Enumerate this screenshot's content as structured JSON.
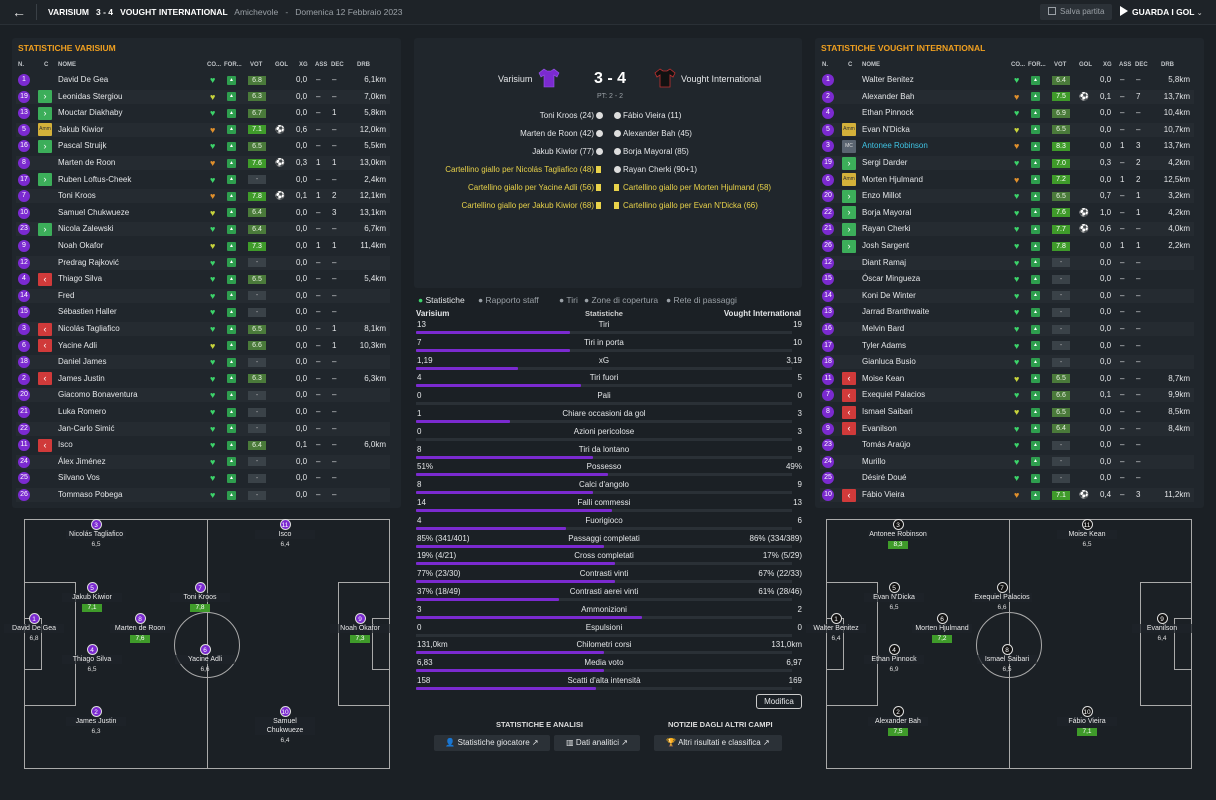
{
  "header": {
    "home": "VARISIUM",
    "score": "3 - 4",
    "away": "VOUGHT INTERNATIONAL",
    "comp": "Amichevole",
    "sep": "-",
    "date": "Domenica 12 Febbraio 2023",
    "save": "Salva partita",
    "watch": "GUARDA I GOL"
  },
  "home": {
    "title": "STATISTICHE VARISIUM",
    "cols": {
      "n": "N.",
      "c": "C",
      "name": "NOME",
      "co": "CO...",
      "for": "FOR...",
      "vot": "VOT",
      "gol": "GOL",
      "xg": "XG",
      "ass": "ASS",
      "dec": "DEC",
      "drb": "DRB"
    },
    "players": [
      {
        "n": "1",
        "c": "",
        "name": "David De Gea",
        "cond": "g",
        "vot": "6.8",
        "vc": "d",
        "gol": "",
        "xg": "0,0",
        "ass": "–",
        "dec": "–",
        "drb": "6,1km"
      },
      {
        "n": "19",
        "c": "in",
        "name": "Leonidas Stergiou",
        "cond": "y",
        "vot": "6.3",
        "vc": "d",
        "gol": "",
        "xg": "0,0",
        "ass": "–",
        "dec": "–",
        "drb": "7,0km"
      },
      {
        "n": "13",
        "c": "in",
        "name": "Mouctar Diakhaby",
        "cond": "g",
        "vot": "6.7",
        "vc": "d",
        "gol": "",
        "xg": "0,0",
        "ass": "–",
        "dec": "1",
        "drb": "5,8km"
      },
      {
        "n": "5",
        "c": "amm",
        "name": "Jakub Kiwior",
        "cond": "o",
        "vot": "7.1",
        "vc": "g",
        "gol": "⚽",
        "xg": "0,6",
        "ass": "–",
        "dec": "–",
        "drb": "12,0km"
      },
      {
        "n": "16",
        "c": "in",
        "name": "Pascal Struijk",
        "cond": "g",
        "vot": "6.5",
        "vc": "d",
        "gol": "",
        "xg": "0,0",
        "ass": "–",
        "dec": "–",
        "drb": "5,5km"
      },
      {
        "n": "8",
        "c": "",
        "name": "Marten de Roon",
        "cond": "o",
        "vot": "7.6",
        "vc": "g",
        "gol": "⚽",
        "xg": "0,3",
        "ass": "1",
        "dec": "1",
        "drb": "13,0km"
      },
      {
        "n": "17",
        "c": "in",
        "name": "Ruben Loftus-Cheek",
        "cond": "g",
        "vot": "-",
        "vc": "d",
        "gol": "",
        "xg": "0,0",
        "ass": "–",
        "dec": "–",
        "drb": "2,4km"
      },
      {
        "n": "7",
        "c": "",
        "name": "Toni Kroos",
        "cond": "o",
        "vot": "7.8",
        "vc": "g",
        "gol": "⚽",
        "xg": "0,1",
        "ass": "1",
        "dec": "2",
        "drb": "12,1km"
      },
      {
        "n": "10",
        "c": "",
        "name": "Samuel Chukwueze",
        "cond": "y",
        "vot": "6.4",
        "vc": "d",
        "gol": "",
        "xg": "0,0",
        "ass": "–",
        "dec": "3",
        "drb": "13,1km"
      },
      {
        "n": "23",
        "c": "in",
        "name": "Nicola Zalewski",
        "cond": "g",
        "vot": "6.4",
        "vc": "d",
        "gol": "",
        "xg": "0,0",
        "ass": "–",
        "dec": "–",
        "drb": "6,7km"
      },
      {
        "n": "9",
        "c": "",
        "name": "Noah Okafor",
        "cond": "y",
        "vot": "7.3",
        "vc": "g",
        "gol": "",
        "xg": "0,0",
        "ass": "1",
        "dec": "1",
        "drb": "11,4km"
      },
      {
        "n": "12",
        "c": "",
        "name": "Predrag Rajković",
        "cond": "g",
        "vot": "-",
        "vc": "d",
        "gol": "",
        "xg": "0,0",
        "ass": "–",
        "dec": "–",
        "drb": ""
      },
      {
        "n": "4",
        "c": "out",
        "name": "Thiago Silva",
        "cond": "g",
        "vot": "6.5",
        "vc": "d",
        "gol": "",
        "xg": "0,0",
        "ass": "–",
        "dec": "–",
        "drb": "5,4km"
      },
      {
        "n": "14",
        "c": "",
        "name": "Fred",
        "cond": "g",
        "vot": "-",
        "vc": "d",
        "gol": "",
        "xg": "0,0",
        "ass": "–",
        "dec": "–",
        "drb": ""
      },
      {
        "n": "15",
        "c": "",
        "name": "Sébastien Haller",
        "cond": "g",
        "vot": "-",
        "vc": "d",
        "gol": "",
        "xg": "0,0",
        "ass": "–",
        "dec": "–",
        "drb": ""
      },
      {
        "n": "3",
        "c": "out",
        "name": "Nicolás Tagliafico",
        "cond": "g",
        "vot": "6.5",
        "vc": "d",
        "gol": "",
        "xg": "0,0",
        "ass": "–",
        "dec": "1",
        "drb": "8,1km"
      },
      {
        "n": "6",
        "c": "out",
        "name": "Yacine Adli",
        "cond": "y",
        "vot": "6.6",
        "vc": "d",
        "gol": "",
        "xg": "0,0",
        "ass": "–",
        "dec": "1",
        "drb": "10,3km"
      },
      {
        "n": "18",
        "c": "",
        "name": "Daniel James",
        "cond": "g",
        "vot": "-",
        "vc": "d",
        "gol": "",
        "xg": "0,0",
        "ass": "–",
        "dec": "–",
        "drb": ""
      },
      {
        "n": "2",
        "c": "out",
        "name": "James Justin",
        "cond": "g",
        "vot": "6.3",
        "vc": "d",
        "gol": "",
        "xg": "0,0",
        "ass": "–",
        "dec": "–",
        "drb": "6,3km"
      },
      {
        "n": "20",
        "c": "",
        "name": "Giacomo Bonaventura",
        "cond": "g",
        "vot": "-",
        "vc": "d",
        "gol": "",
        "xg": "0,0",
        "ass": "–",
        "dec": "–",
        "drb": ""
      },
      {
        "n": "21",
        "c": "",
        "name": "Luka Romero",
        "cond": "g",
        "vot": "-",
        "vc": "d",
        "gol": "",
        "xg": "0,0",
        "ass": "–",
        "dec": "–",
        "drb": ""
      },
      {
        "n": "22",
        "c": "",
        "name": "Jan-Carlo Simić",
        "cond": "g",
        "vot": "-",
        "vc": "d",
        "gol": "",
        "xg": "0,0",
        "ass": "–",
        "dec": "–",
        "drb": ""
      },
      {
        "n": "11",
        "c": "out",
        "name": "Isco",
        "cond": "g",
        "vot": "6.4",
        "vc": "d",
        "gol": "",
        "xg": "0,1",
        "ass": "–",
        "dec": "–",
        "drb": "6,0km"
      },
      {
        "n": "24",
        "c": "",
        "name": "Álex Jiménez",
        "cond": "g",
        "vot": "-",
        "vc": "d",
        "gol": "",
        "xg": "0,0",
        "ass": "–",
        "dec": "–",
        "drb": ""
      },
      {
        "n": "25",
        "c": "",
        "name": "Silvano Vos",
        "cond": "g",
        "vot": "-",
        "vc": "d",
        "gol": "",
        "xg": "0,0",
        "ass": "–",
        "dec": "–",
        "drb": ""
      },
      {
        "n": "26",
        "c": "",
        "name": "Tommaso Pobega",
        "cond": "g",
        "vot": "-",
        "vc": "d",
        "gol": "",
        "xg": "0,0",
        "ass": "–",
        "dec": "–",
        "drb": ""
      }
    ],
    "lineup": [
      {
        "n": "3",
        "name": "Nicolás Tagliafico",
        "r": "6,5",
        "g": false
      },
      {
        "n": "11",
        "name": "Isco",
        "r": "6,4",
        "g": false
      },
      {
        "n": "5",
        "name": "Jakub Kiwior",
        "r": "7,1",
        "g": true
      },
      {
        "n": "7",
        "name": "Toni Kroos",
        "r": "7,8",
        "g": true
      },
      {
        "n": "1",
        "name": "David De Gea",
        "r": "6,8",
        "g": false
      },
      {
        "n": "8",
        "name": "Marten de Roon",
        "r": "7,6",
        "g": true
      },
      {
        "n": "9",
        "name": "Noah Okafor",
        "r": "7,3",
        "g": true
      },
      {
        "n": "4",
        "name": "Thiago Silva",
        "r": "6,5",
        "g": false
      },
      {
        "n": "6",
        "name": "Yacine Adli",
        "r": "6,6",
        "g": false
      },
      {
        "n": "2",
        "name": "James Justin",
        "r": "6,3",
        "g": false
      },
      {
        "n": "10",
        "name": "Samuel Chukwueze",
        "r": "6,4",
        "g": false
      }
    ]
  },
  "away": {
    "title": "STATISTICHE VOUGHT INTERNATIONAL",
    "players": [
      {
        "n": "1",
        "c": "",
        "name": "Walter Benitez",
        "cond": "g",
        "vot": "6.4",
        "vc": "d",
        "gol": "",
        "xg": "0,0",
        "ass": "–",
        "dec": "–",
        "drb": "5,8km"
      },
      {
        "n": "2",
        "c": "",
        "name": "Alexander Bah",
        "cond": "o",
        "vot": "7.5",
        "vc": "g",
        "gol": "⚽",
        "xg": "0,1",
        "ass": "–",
        "dec": "7",
        "drb": "13,7km"
      },
      {
        "n": "4",
        "c": "",
        "name": "Ethan Pinnock",
        "cond": "g",
        "vot": "6.9",
        "vc": "d",
        "gol": "",
        "xg": "0,0",
        "ass": "–",
        "dec": "–",
        "drb": "10,4km"
      },
      {
        "n": "5",
        "c": "amm",
        "name": "Evan N'Dicka",
        "cond": "y",
        "vot": "6.5",
        "vc": "d",
        "gol": "",
        "xg": "0,0",
        "ass": "–",
        "dec": "–",
        "drb": "10,7km"
      },
      {
        "n": "3",
        "c": "mc",
        "name": "Antonee Robinson",
        "cond": "o",
        "vot": "8.3",
        "vc": "g",
        "gol": "",
        "xg": "0,0",
        "ass": "1",
        "dec": "3",
        "drb": "13,7km",
        "hl": true
      },
      {
        "n": "19",
        "c": "in",
        "name": "Sergi Darder",
        "cond": "g",
        "vot": "7.0",
        "vc": "g",
        "gol": "",
        "xg": "0,3",
        "ass": "–",
        "dec": "2",
        "drb": "4,2km"
      },
      {
        "n": "6",
        "c": "amm",
        "name": "Morten Hjulmand",
        "cond": "o",
        "vot": "7.2",
        "vc": "g",
        "gol": "",
        "xg": "0,0",
        "ass": "1",
        "dec": "2",
        "drb": "12,5km"
      },
      {
        "n": "20",
        "c": "in",
        "name": "Enzo Millot",
        "cond": "g",
        "vot": "6.5",
        "vc": "d",
        "gol": "",
        "xg": "0,7",
        "ass": "–",
        "dec": "1",
        "drb": "3,2km"
      },
      {
        "n": "22",
        "c": "in",
        "name": "Borja Mayoral",
        "cond": "g",
        "vot": "7.6",
        "vc": "g",
        "gol": "⚽",
        "xg": "1,0",
        "ass": "–",
        "dec": "1",
        "drb": "4,2km"
      },
      {
        "n": "21",
        "c": "in",
        "name": "Rayan Cherki",
        "cond": "g",
        "vot": "7.7",
        "vc": "g",
        "gol": "⚽",
        "xg": "0,6",
        "ass": "–",
        "dec": "–",
        "drb": "4,0km"
      },
      {
        "n": "26",
        "c": "in",
        "name": "Josh Sargent",
        "cond": "g",
        "vot": "7.8",
        "vc": "g",
        "gol": "",
        "xg": "0,0",
        "ass": "1",
        "dec": "1",
        "drb": "2,2km"
      },
      {
        "n": "12",
        "c": "",
        "name": "Diant Ramaj",
        "cond": "g",
        "vot": "-",
        "vc": "d",
        "gol": "",
        "xg": "0,0",
        "ass": "–",
        "dec": "–",
        "drb": ""
      },
      {
        "n": "15",
        "c": "",
        "name": "Óscar Mingueza",
        "cond": "g",
        "vot": "-",
        "vc": "d",
        "gol": "",
        "xg": "0,0",
        "ass": "–",
        "dec": "–",
        "drb": ""
      },
      {
        "n": "14",
        "c": "",
        "name": "Koni De Winter",
        "cond": "g",
        "vot": "-",
        "vc": "d",
        "gol": "",
        "xg": "0,0",
        "ass": "–",
        "dec": "–",
        "drb": ""
      },
      {
        "n": "13",
        "c": "",
        "name": "Jarrad Branthwaite",
        "cond": "g",
        "vot": "-",
        "vc": "d",
        "gol": "",
        "xg": "0,0",
        "ass": "–",
        "dec": "–",
        "drb": ""
      },
      {
        "n": "16",
        "c": "",
        "name": "Melvin Bard",
        "cond": "g",
        "vot": "-",
        "vc": "d",
        "gol": "",
        "xg": "0,0",
        "ass": "–",
        "dec": "–",
        "drb": ""
      },
      {
        "n": "17",
        "c": "",
        "name": "Tyler Adams",
        "cond": "g",
        "vot": "-",
        "vc": "d",
        "gol": "",
        "xg": "0,0",
        "ass": "–",
        "dec": "–",
        "drb": ""
      },
      {
        "n": "18",
        "c": "",
        "name": "Gianluca Busio",
        "cond": "g",
        "vot": "-",
        "vc": "d",
        "gol": "",
        "xg": "0,0",
        "ass": "–",
        "dec": "–",
        "drb": ""
      },
      {
        "n": "11",
        "c": "out",
        "name": "Moise Kean",
        "cond": "y",
        "vot": "6.5",
        "vc": "d",
        "gol": "",
        "xg": "0,0",
        "ass": "–",
        "dec": "–",
        "drb": "8,7km"
      },
      {
        "n": "7",
        "c": "out",
        "name": "Exequiel Palacios",
        "cond": "g",
        "vot": "6.6",
        "vc": "d",
        "gol": "",
        "xg": "0,1",
        "ass": "–",
        "dec": "–",
        "drb": "9,9km"
      },
      {
        "n": "8",
        "c": "out",
        "name": "Ismael Saibari",
        "cond": "y",
        "vot": "6.5",
        "vc": "d",
        "gol": "",
        "xg": "0,0",
        "ass": "–",
        "dec": "–",
        "drb": "8,5km"
      },
      {
        "n": "9",
        "c": "out",
        "name": "Evanilson",
        "cond": "g",
        "vot": "6.4",
        "vc": "d",
        "gol": "",
        "xg": "0,0",
        "ass": "–",
        "dec": "–",
        "drb": "8,4km"
      },
      {
        "n": "23",
        "c": "",
        "name": "Tomás Araújo",
        "cond": "g",
        "vot": "-",
        "vc": "d",
        "gol": "",
        "xg": "0,0",
        "ass": "–",
        "dec": "–",
        "drb": ""
      },
      {
        "n": "24",
        "c": "",
        "name": "Murillo",
        "cond": "g",
        "vot": "-",
        "vc": "d",
        "gol": "",
        "xg": "0,0",
        "ass": "–",
        "dec": "–",
        "drb": ""
      },
      {
        "n": "25",
        "c": "",
        "name": "Désiré Doué",
        "cond": "g",
        "vot": "-",
        "vc": "d",
        "gol": "",
        "xg": "0,0",
        "ass": "–",
        "dec": "–",
        "drb": ""
      },
      {
        "n": "10",
        "c": "out",
        "name": "Fábio Vieira",
        "cond": "o",
        "vot": "7.1",
        "vc": "g",
        "gol": "⚽",
        "xg": "0,4",
        "ass": "–",
        "dec": "3",
        "drb": "11,2km"
      }
    ],
    "lineup": [
      {
        "n": "3",
        "name": "Antonee Robinson",
        "r": "8,3",
        "g": true
      },
      {
        "n": "11",
        "name": "Moise Kean",
        "r": "6,5",
        "g": false
      },
      {
        "n": "5",
        "name": "Evan N'Dicka",
        "r": "6,5",
        "g": false
      },
      {
        "n": "7",
        "name": "Exequiel Palacios",
        "r": "6,6",
        "g": false
      },
      {
        "n": "1",
        "name": "Walter Benitez",
        "r": "6,4",
        "g": false
      },
      {
        "n": "6",
        "name": "Morten Hjulmand",
        "r": "7,2",
        "g": true
      },
      {
        "n": "9",
        "name": "Evanilson",
        "r": "6,4",
        "g": false
      },
      {
        "n": "4",
        "name": "Ethan Pinnock",
        "r": "6,9",
        "g": false
      },
      {
        "n": "8",
        "name": "Ismael Saibari",
        "r": "6,5",
        "g": false
      },
      {
        "n": "2",
        "name": "Alexander Bah",
        "r": "7,5",
        "g": true
      },
      {
        "n": "10",
        "name": "Fábio Vieira",
        "r": "7,1",
        "g": true
      }
    ]
  },
  "center": {
    "home": "Varisium",
    "away": "Vought International",
    "score": "3 - 4",
    "pt": "PT: 2 - 2",
    "events_left": [
      {
        "t": "Toni Kroos (24)",
        "k": "goal"
      },
      {
        "t": "Marten de Roon (42)",
        "k": "goal"
      },
      {
        "t": "Jakub Kiwior (77)",
        "k": "goal"
      },
      {
        "t": "Cartellino giallo per Nicolás Tagliafico (48)",
        "k": "yellow"
      },
      {
        "t": "Cartellino giallo per Yacine Adli (56)",
        "k": "yellow"
      },
      {
        "t": "Cartellino giallo per Jakub Kiwior (68)",
        "k": "yellow"
      }
    ],
    "events_right": [
      {
        "t": "Fábio Vieira (11)",
        "k": "goal"
      },
      {
        "t": "Alexander Bah (45)",
        "k": "goal"
      },
      {
        "t": "Borja Mayoral (85)",
        "k": "goal"
      },
      {
        "t": "Rayan Cherki (90+1)",
        "k": "goal"
      },
      {
        "t": "Cartellino giallo per Morten Hjulmand (58)",
        "k": "yellow"
      },
      {
        "t": "Cartellino giallo per Evan N'Dicka (66)",
        "k": "yellow"
      }
    ]
  },
  "tabs": [
    "Statistiche",
    "Rapporto staff",
    "Tiri",
    "Zone di copertura",
    "Rete di passaggi"
  ],
  "stats_head": {
    "left": "Varisium",
    "mid": "Statistiche",
    "right": "Vought International"
  },
  "stats": [
    {
      "l": "13",
      "n": "Tiri",
      "r": "19",
      "p": 0.41
    },
    {
      "l": "7",
      "n": "Tiri in porta",
      "r": "10",
      "p": 0.41
    },
    {
      "l": "1,19",
      "n": "xG",
      "r": "3,19",
      "p": 0.27
    },
    {
      "l": "4",
      "n": "Tiri fuori",
      "r": "5",
      "p": 0.44
    },
    {
      "l": "0",
      "n": "Pali",
      "r": "0",
      "p": 0
    },
    {
      "l": "1",
      "n": "Chiare occasioni da gol",
      "r": "3",
      "p": 0.25
    },
    {
      "l": "0",
      "n": "Azioni pericolose",
      "r": "3",
      "p": 0
    },
    {
      "l": "8",
      "n": "Tiri da lontano",
      "r": "9",
      "p": 0.47
    },
    {
      "l": "51%",
      "n": "Possesso",
      "r": "49%",
      "p": 0.51
    },
    {
      "l": "8",
      "n": "Calci d'angolo",
      "r": "9",
      "p": 0.47
    },
    {
      "l": "14",
      "n": "Falli commessi",
      "r": "13",
      "p": 0.52
    },
    {
      "l": "4",
      "n": "Fuorigioco",
      "r": "6",
      "p": 0.4
    },
    {
      "l": "85% (341/401)",
      "n": "Passaggi completati",
      "r": "86% (334/389)",
      "p": 0.5
    },
    {
      "l": "19% (4/21)",
      "n": "Cross completati",
      "r": "17% (5/29)",
      "p": 0.53
    },
    {
      "l": "77% (23/30)",
      "n": "Contrasti vinti",
      "r": "67% (22/33)",
      "p": 0.53
    },
    {
      "l": "37% (18/49)",
      "n": "Contrasti aerei vinti",
      "r": "61% (28/46)",
      "p": 0.38
    },
    {
      "l": "3",
      "n": "Ammonizioni",
      "r": "2",
      "p": 0.6
    },
    {
      "l": "0",
      "n": "Espulsioni",
      "r": "0",
      "p": 0
    },
    {
      "l": "131,0km",
      "n": "Chilometri corsi",
      "r": "131,0km",
      "p": 0.5
    },
    {
      "l": "6,83",
      "n": "Media voto",
      "r": "6,97",
      "p": 0.5
    },
    {
      "l": "158",
      "n": "Scatti d'alta intensità",
      "r": "169",
      "p": 0.48
    }
  ],
  "modifica": "Modifica",
  "bottom": {
    "h1": "STATISTICHE E ANALISI",
    "h2": "NOTIZIE DAGLI ALTRI CAMPI",
    "b1": "Statistiche giocatore",
    "b2": "Dati analitici",
    "b3": "Altri risultati e classifica"
  },
  "colors": {
    "purple": "#7b2ad0",
    "orange": "#f0a020",
    "green": "#3cae5a",
    "red": "#d03a3a"
  }
}
